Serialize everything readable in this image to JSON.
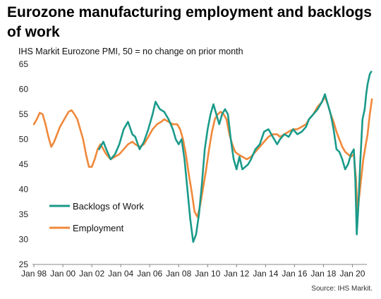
{
  "title": "Eurozone manufacturing employment and backlogs of work",
  "subtitle": "IHS Markit  Eurozone PMI, 50 = no change on prior month",
  "source": "Source: IHS Markit.",
  "colors": {
    "backlogs": "#1a9a8a",
    "employment": "#f0883a",
    "axis": "#888888"
  },
  "chart_data": {
    "type": "line",
    "title": "Eurozone manufacturing employment and backlogs of work",
    "ylim": [
      25,
      65
    ],
    "y_ticks": [
      25,
      30,
      35,
      40,
      45,
      50,
      55,
      60,
      65
    ],
    "xlim": [
      1997.9,
      2021.0
    ],
    "x_ticks": [
      {
        "x": 1998,
        "label": "Jan 98"
      },
      {
        "x": 2000,
        "label": "Jan 00"
      },
      {
        "x": 2002,
        "label": "Jan 02"
      },
      {
        "x": 2004,
        "label": "Jan 04"
      },
      {
        "x": 2006,
        "label": "Jan 06"
      },
      {
        "x": 2008,
        "label": "Jan 08"
      },
      {
        "x": 2010,
        "label": "Jan 10"
      },
      {
        "x": 2012,
        "label": "Jan 12"
      },
      {
        "x": 2014,
        "label": "Jan 14"
      },
      {
        "x": 2016,
        "label": "Jan 16"
      },
      {
        "x": 2018,
        "label": "Jan 18"
      },
      {
        "x": 2020,
        "label": "Jan 20"
      }
    ],
    "legend_position": "lower-left",
    "grid": false,
    "series": [
      {
        "name": "Backlogs of Work",
        "points": [
          [
            2002.5,
            48
          ],
          [
            2002.8,
            49.5
          ],
          [
            2003.0,
            48
          ],
          [
            2003.3,
            46
          ],
          [
            2003.6,
            47
          ],
          [
            2003.9,
            49
          ],
          [
            2004.2,
            52
          ],
          [
            2004.5,
            53.5
          ],
          [
            2004.8,
            51
          ],
          [
            2005.0,
            50.5
          ],
          [
            2005.3,
            48
          ],
          [
            2005.6,
            49.5
          ],
          [
            2005.9,
            52
          ],
          [
            2006.2,
            55
          ],
          [
            2006.4,
            57.5
          ],
          [
            2006.7,
            56
          ],
          [
            2007.0,
            55.5
          ],
          [
            2007.3,
            54
          ],
          [
            2007.6,
            52
          ],
          [
            2007.8,
            50
          ],
          [
            2008.0,
            49
          ],
          [
            2008.2,
            50
          ],
          [
            2008.4,
            46
          ],
          [
            2008.6,
            40
          ],
          [
            2008.8,
            34
          ],
          [
            2009.0,
            29.5
          ],
          [
            2009.2,
            31
          ],
          [
            2009.4,
            35
          ],
          [
            2009.6,
            41
          ],
          [
            2009.8,
            48
          ],
          [
            2010.0,
            52
          ],
          [
            2010.2,
            55
          ],
          [
            2010.4,
            57
          ],
          [
            2010.6,
            55
          ],
          [
            2010.8,
            53
          ],
          [
            2011.0,
            55
          ],
          [
            2011.2,
            56
          ],
          [
            2011.4,
            55
          ],
          [
            2011.6,
            50
          ],
          [
            2011.8,
            46
          ],
          [
            2012.0,
            44
          ],
          [
            2012.2,
            46.5
          ],
          [
            2012.4,
            44
          ],
          [
            2012.6,
            44.5
          ],
          [
            2012.8,
            45
          ],
          [
            2013.0,
            46
          ],
          [
            2013.3,
            48
          ],
          [
            2013.6,
            49
          ],
          [
            2013.9,
            51.5
          ],
          [
            2014.2,
            52
          ],
          [
            2014.5,
            50.5
          ],
          [
            2014.8,
            49
          ],
          [
            2015.0,
            50
          ],
          [
            2015.3,
            51
          ],
          [
            2015.6,
            50.5
          ],
          [
            2015.9,
            52
          ],
          [
            2016.2,
            51
          ],
          [
            2016.5,
            51.5
          ],
          [
            2016.8,
            52.5
          ],
          [
            2017.0,
            54
          ],
          [
            2017.3,
            55
          ],
          [
            2017.6,
            56
          ],
          [
            2017.9,
            57.5
          ],
          [
            2018.1,
            59
          ],
          [
            2018.3,
            57
          ],
          [
            2018.5,
            55
          ],
          [
            2018.7,
            52
          ],
          [
            2018.9,
            48
          ],
          [
            2019.1,
            47.5
          ],
          [
            2019.3,
            46
          ],
          [
            2019.5,
            44
          ],
          [
            2019.7,
            45
          ],
          [
            2019.9,
            47
          ],
          [
            2020.1,
            48
          ],
          [
            2020.2,
            42
          ],
          [
            2020.3,
            31
          ],
          [
            2020.4,
            36
          ],
          [
            2020.55,
            46
          ],
          [
            2020.7,
            54
          ],
          [
            2020.85,
            56
          ],
          [
            2020.95,
            59
          ],
          [
            2021.05,
            61
          ],
          [
            2021.2,
            63
          ],
          [
            2021.3,
            63.5
          ]
        ]
      },
      {
        "name": "Employment",
        "points": [
          [
            1998.0,
            53
          ],
          [
            1998.2,
            54
          ],
          [
            1998.4,
            55.3
          ],
          [
            1998.6,
            55
          ],
          [
            1998.8,
            53
          ],
          [
            1999.0,
            50.5
          ],
          [
            1999.2,
            48.5
          ],
          [
            1999.4,
            49.5
          ],
          [
            1999.6,
            51
          ],
          [
            1999.8,
            52.5
          ],
          [
            2000.0,
            53.5
          ],
          [
            2000.2,
            54.5
          ],
          [
            2000.4,
            55.5
          ],
          [
            2000.6,
            55.8
          ],
          [
            2000.8,
            55
          ],
          [
            2001.0,
            54
          ],
          [
            2001.2,
            52
          ],
          [
            2001.4,
            50
          ],
          [
            2001.6,
            47
          ],
          [
            2001.8,
            44.5
          ],
          [
            2002.0,
            44.5
          ],
          [
            2002.2,
            46
          ],
          [
            2002.4,
            48
          ],
          [
            2002.6,
            49
          ],
          [
            2002.8,
            48
          ],
          [
            2003.0,
            47
          ],
          [
            2003.3,
            46
          ],
          [
            2003.6,
            46.5
          ],
          [
            2003.9,
            47
          ],
          [
            2004.2,
            48
          ],
          [
            2004.5,
            49
          ],
          [
            2004.8,
            49.5
          ],
          [
            2005.0,
            49
          ],
          [
            2005.3,
            48.5
          ],
          [
            2005.6,
            49
          ],
          [
            2005.9,
            50.5
          ],
          [
            2006.2,
            52
          ],
          [
            2006.5,
            53
          ],
          [
            2006.8,
            53.5
          ],
          [
            2007.0,
            54
          ],
          [
            2007.3,
            53.5
          ],
          [
            2007.6,
            53
          ],
          [
            2007.9,
            53
          ],
          [
            2008.1,
            52
          ],
          [
            2008.3,
            50
          ],
          [
            2008.5,
            47
          ],
          [
            2008.7,
            43
          ],
          [
            2008.9,
            39.5
          ],
          [
            2009.1,
            35.5
          ],
          [
            2009.3,
            34.5
          ],
          [
            2009.5,
            37
          ],
          [
            2009.7,
            40.5
          ],
          [
            2009.9,
            44
          ],
          [
            2010.1,
            48
          ],
          [
            2010.3,
            51.5
          ],
          [
            2010.5,
            54
          ],
          [
            2010.7,
            55
          ],
          [
            2010.9,
            55.5
          ],
          [
            2011.1,
            55
          ],
          [
            2011.3,
            54
          ],
          [
            2011.5,
            51
          ],
          [
            2011.7,
            49
          ],
          [
            2011.9,
            47.5
          ],
          [
            2012.1,
            47
          ],
          [
            2012.4,
            46.5
          ],
          [
            2012.7,
            46
          ],
          [
            2013.0,
            46.5
          ],
          [
            2013.3,
            47.5
          ],
          [
            2013.6,
            48.5
          ],
          [
            2013.9,
            49.5
          ],
          [
            2014.2,
            50.5
          ],
          [
            2014.5,
            51
          ],
          [
            2014.8,
            51
          ],
          [
            2015.0,
            50.5
          ],
          [
            2015.3,
            51
          ],
          [
            2015.6,
            51.5
          ],
          [
            2015.9,
            52
          ],
          [
            2016.2,
            52
          ],
          [
            2016.5,
            52.5
          ],
          [
            2016.8,
            53
          ],
          [
            2017.0,
            54
          ],
          [
            2017.3,
            55
          ],
          [
            2017.6,
            56.5
          ],
          [
            2017.9,
            57.5
          ],
          [
            2018.1,
            58.5
          ],
          [
            2018.3,
            57
          ],
          [
            2018.5,
            55
          ],
          [
            2018.7,
            53.5
          ],
          [
            2018.9,
            51.5
          ],
          [
            2019.1,
            50
          ],
          [
            2019.3,
            48.5
          ],
          [
            2019.5,
            47.5
          ],
          [
            2019.7,
            47
          ],
          [
            2019.9,
            46.5
          ],
          [
            2020.1,
            47
          ],
          [
            2020.25,
            42
          ],
          [
            2020.35,
            35
          ],
          [
            2020.45,
            38
          ],
          [
            2020.6,
            42
          ],
          [
            2020.75,
            46
          ],
          [
            2020.9,
            48.5
          ],
          [
            2021.05,
            51
          ],
          [
            2021.2,
            55
          ],
          [
            2021.35,
            58
          ]
        ]
      }
    ]
  }
}
